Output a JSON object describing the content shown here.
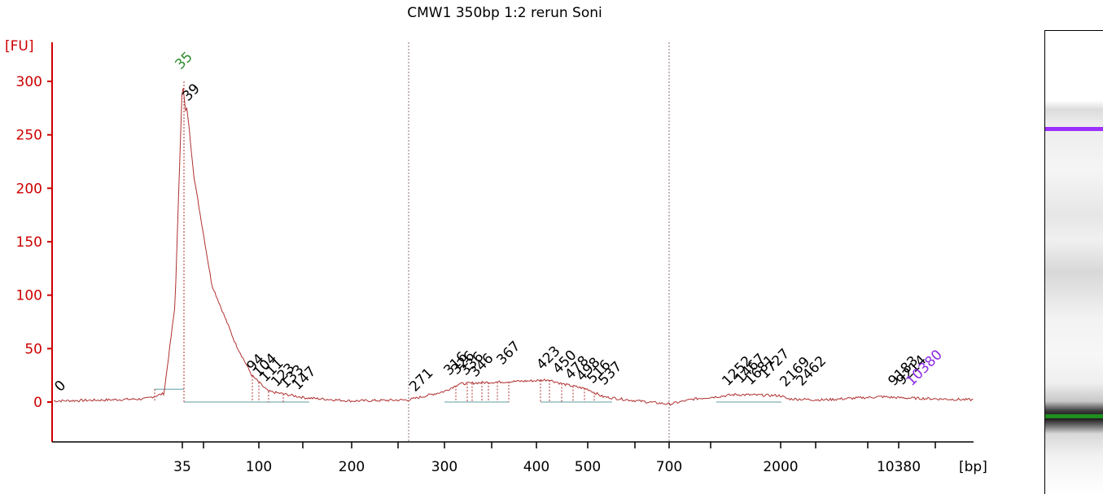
{
  "chart_data": {
    "type": "line",
    "title": "CMW1 350bp 1:2 rerun Soni",
    "ylabel": "[FU]",
    "xlabel": "[bp]",
    "ylim": [
      -35,
      335
    ],
    "y_ticks": [
      0,
      50,
      100,
      150,
      200,
      250,
      300
    ],
    "x_tick_labels": [
      "35",
      "100",
      "200",
      "300",
      "400",
      "500",
      "700",
      "2000",
      "10380"
    ],
    "x_scale": "nonlinear (migration time)",
    "grid": "off",
    "colors": {
      "trace": "#b03030",
      "axis": "#cc0000",
      "marker_lower": "#2e8b2e",
      "marker_upper": "#8a2be2",
      "baseline": "#5f9ea0"
    },
    "series": [
      {
        "points": [
          [
            0,
            1
          ],
          [
            15,
            2
          ],
          [
            25,
            3
          ],
          [
            30,
            8
          ],
          [
            33,
            90
          ],
          [
            35,
            300
          ],
          [
            38,
            270
          ],
          [
            39,
            275
          ],
          [
            45,
            210
          ],
          [
            60,
            110
          ],
          [
            80,
            55
          ],
          [
            94,
            25
          ],
          [
            110,
            10
          ],
          [
            150,
            4
          ],
          [
            200,
            1
          ],
          [
            271,
            2
          ],
          [
            300,
            10
          ],
          [
            316,
            17
          ],
          [
            336,
            18
          ],
          [
            367,
            19
          ],
          [
            400,
            20
          ],
          [
            423,
            21
          ],
          [
            450,
            17
          ],
          [
            480,
            14
          ],
          [
            500,
            12
          ],
          [
            537,
            5
          ],
          [
            600,
            2
          ],
          [
            700,
            -2
          ],
          [
            1000,
            3
          ],
          [
            1252,
            5
          ],
          [
            1467,
            7
          ],
          [
            2000,
            6
          ],
          [
            2462,
            3
          ],
          [
            5000,
            2
          ],
          [
            9183,
            5
          ],
          [
            10380,
            4
          ],
          [
            15000,
            2
          ]
        ]
      }
    ],
    "peak_labels": [
      {
        "text": "0",
        "bp": 0,
        "color": "#000000"
      },
      {
        "text": "35",
        "bp": 35,
        "color": "#2e8b2e"
      },
      {
        "text": "39",
        "bp": 39,
        "color": "#000000"
      },
      {
        "text": "94",
        "bp": 94,
        "color": "#000000"
      },
      {
        "text": "104",
        "bp": 104,
        "color": "#000000"
      },
      {
        "text": "111",
        "bp": 111,
        "color": "#000000"
      },
      {
        "text": "123",
        "bp": 123,
        "color": "#000000"
      },
      {
        "text": "133",
        "bp": 133,
        "color": "#000000"
      },
      {
        "text": "147",
        "bp": 147,
        "color": "#000000"
      },
      {
        "text": "271",
        "bp": 271,
        "color": "#000000"
      },
      {
        "text": "316",
        "bp": 316,
        "color": "#000000"
      },
      {
        "text": "326",
        "bp": 326,
        "color": "#000000"
      },
      {
        "text": "336",
        "bp": 336,
        "color": "#000000"
      },
      {
        "text": "346",
        "bp": 346,
        "color": "#000000"
      },
      {
        "text": "367",
        "bp": 367,
        "color": "#000000"
      },
      {
        "text": "423",
        "bp": 423,
        "color": "#000000"
      },
      {
        "text": "450",
        "bp": 450,
        "color": "#000000"
      },
      {
        "text": "478",
        "bp": 478,
        "color": "#000000"
      },
      {
        "text": "498",
        "bp": 498,
        "color": "#000000"
      },
      {
        "text": "516",
        "bp": 516,
        "color": "#000000"
      },
      {
        "text": "537",
        "bp": 537,
        "color": "#000000"
      },
      {
        "text": "1252",
        "bp": 1252,
        "color": "#000000"
      },
      {
        "text": "1467",
        "bp": 1467,
        "color": "#000000"
      },
      {
        "text": "1681",
        "bp": 1681,
        "color": "#000000"
      },
      {
        "text": "1727",
        "bp": 1727,
        "color": "#000000"
      },
      {
        "text": "2169",
        "bp": 2169,
        "color": "#000000"
      },
      {
        "text": "2462",
        "bp": 2462,
        "color": "#000000"
      },
      {
        "text": "9183",
        "bp": 9183,
        "color": "#000000"
      },
      {
        "text": "9214",
        "bp": 9214,
        "color": "#000000"
      },
      {
        "text": "10380",
        "bp": 10380,
        "color": "#8a2be2"
      }
    ],
    "region_markers_bp": [
      271,
      700
    ]
  }
}
